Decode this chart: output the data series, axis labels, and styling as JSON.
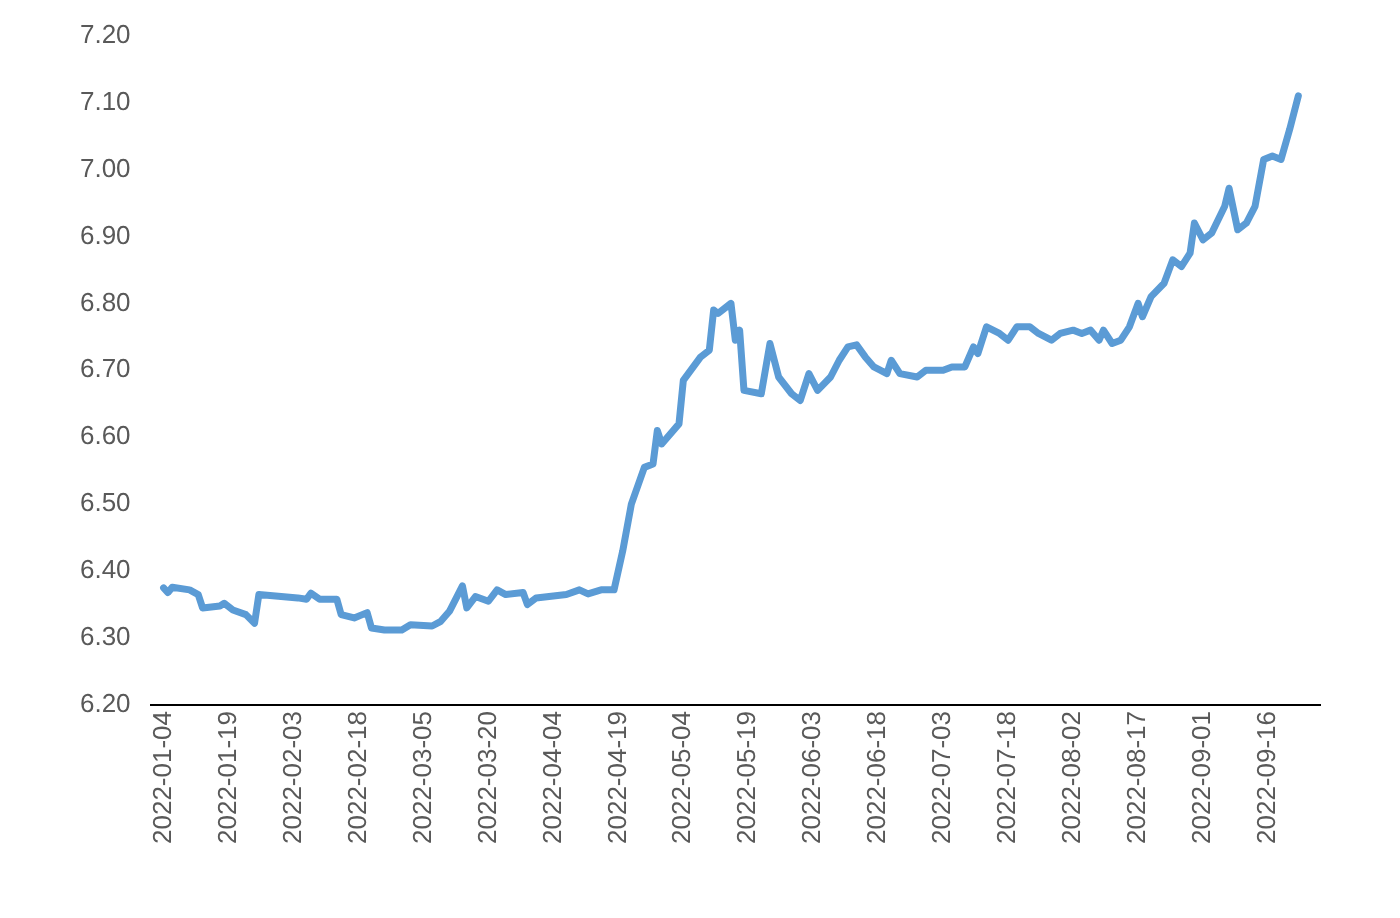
{
  "chart_data": {
    "type": "line",
    "x": [
      "2022-01-04",
      "2022-01-05",
      "2022-01-06",
      "2022-01-10",
      "2022-01-12",
      "2022-01-13",
      "2022-01-17",
      "2022-01-18",
      "2022-01-20",
      "2022-01-23",
      "2022-01-25",
      "2022-01-26",
      "2022-02-04",
      "2022-02-06",
      "2022-02-07",
      "2022-02-09",
      "2022-02-13",
      "2022-02-14",
      "2022-02-17",
      "2022-02-20",
      "2022-02-21",
      "2022-02-24",
      "2022-02-28",
      "2022-03-02",
      "2022-03-07",
      "2022-03-09",
      "2022-03-11",
      "2022-03-14",
      "2022-03-15",
      "2022-03-17",
      "2022-03-20",
      "2022-03-22",
      "2022-03-24",
      "2022-03-28",
      "2022-03-29",
      "2022-03-31",
      "2022-04-07",
      "2022-04-10",
      "2022-04-12",
      "2022-04-15",
      "2022-04-18",
      "2022-04-20",
      "2022-04-22",
      "2022-04-25",
      "2022-04-27",
      "2022-04-28",
      "2022-04-29",
      "2022-05-03",
      "2022-05-04",
      "2022-05-08",
      "2022-05-10",
      "2022-05-11",
      "2022-05-12",
      "2022-05-15",
      "2022-05-16",
      "2022-05-17",
      "2022-05-18",
      "2022-05-22",
      "2022-05-24",
      "2022-05-26",
      "2022-05-29",
      "2022-05-31",
      "2022-06-02",
      "2022-06-04",
      "2022-06-07",
      "2022-06-09",
      "2022-06-11",
      "2022-06-13",
      "2022-06-15",
      "2022-06-17",
      "2022-06-20",
      "2022-06-21",
      "2022-06-23",
      "2022-06-27",
      "2022-06-29",
      "2022-07-03",
      "2022-07-05",
      "2022-07-08",
      "2022-07-10",
      "2022-07-11",
      "2022-07-13",
      "2022-07-16",
      "2022-07-18",
      "2022-07-20",
      "2022-07-23",
      "2022-07-25",
      "2022-07-28",
      "2022-07-30",
      "2022-08-02",
      "2022-08-04",
      "2022-08-06",
      "2022-08-08",
      "2022-08-09",
      "2022-08-11",
      "2022-08-13",
      "2022-08-15",
      "2022-08-17",
      "2022-08-18",
      "2022-08-20",
      "2022-08-23",
      "2022-08-25",
      "2022-08-27",
      "2022-08-29",
      "2022-08-30",
      "2022-09-01",
      "2022-09-03",
      "2022-09-06",
      "2022-09-07",
      "2022-09-09",
      "2022-09-11",
      "2022-09-13",
      "2022-09-15",
      "2022-09-17",
      "2022-09-19",
      "2022-09-21",
      "2022-09-23"
    ],
    "series": [
      {
        "color": "#5b9bd5",
        "values": [
          6.375,
          6.368,
          6.376,
          6.372,
          6.365,
          6.345,
          6.348,
          6.352,
          6.342,
          6.335,
          6.322,
          6.365,
          6.36,
          6.358,
          6.367,
          6.358,
          6.358,
          6.335,
          6.33,
          6.338,
          6.315,
          6.312,
          6.312,
          6.32,
          6.318,
          6.325,
          6.34,
          6.378,
          6.345,
          6.362,
          6.355,
          6.372,
          6.365,
          6.368,
          6.35,
          6.36,
          6.365,
          6.372,
          6.366,
          6.372,
          6.372,
          6.43,
          6.5,
          6.555,
          6.56,
          6.61,
          6.59,
          6.62,
          6.685,
          6.72,
          6.73,
          6.79,
          6.785,
          6.8,
          6.745,
          6.76,
          6.67,
          6.665,
          6.74,
          6.69,
          6.665,
          6.655,
          6.695,
          6.67,
          6.69,
          6.715,
          6.735,
          6.738,
          6.72,
          6.705,
          6.695,
          6.715,
          6.695,
          6.69,
          6.7,
          6.7,
          6.705,
          6.705,
          6.735,
          6.725,
          6.765,
          6.755,
          6.745,
          6.765,
          6.765,
          6.755,
          6.745,
          6.755,
          6.76,
          6.755,
          6.76,
          6.745,
          6.76,
          6.74,
          6.745,
          6.765,
          6.8,
          6.78,
          6.81,
          6.83,
          6.865,
          6.855,
          6.875,
          6.92,
          6.895,
          6.905,
          6.945,
          6.972,
          6.91,
          6.92,
          6.945,
          7.015,
          7.02,
          7.015,
          7.06,
          7.11
        ]
      }
    ],
    "xlim": [
      "2022-01-01",
      "2022-09-28"
    ],
    "xticks": [
      "2022-01-04",
      "2022-01-19",
      "2022-02-03",
      "2022-02-18",
      "2022-03-05",
      "2022-03-20",
      "2022-04-04",
      "2022-04-19",
      "2022-05-04",
      "2022-05-19",
      "2022-06-03",
      "2022-06-18",
      "2022-07-03",
      "2022-07-18",
      "2022-08-02",
      "2022-08-17",
      "2022-09-01",
      "2022-09-16"
    ],
    "ylim": [
      6.2,
      7.2
    ],
    "yticks": [
      {
        "value": 6.2,
        "label": "6.20"
      },
      {
        "value": 6.3,
        "label": "6.30"
      },
      {
        "value": 6.4,
        "label": "6.40"
      },
      {
        "value": 6.5,
        "label": "6.50"
      },
      {
        "value": 6.6,
        "label": "6.60"
      },
      {
        "value": 6.7,
        "label": "6.70"
      },
      {
        "value": 6.8,
        "label": "6.80"
      },
      {
        "value": 6.9,
        "label": "6.90"
      },
      {
        "value": 7.0,
        "label": "7.00"
      },
      {
        "value": 7.1,
        "label": "7.10"
      },
      {
        "value": 7.2,
        "label": "7.20"
      }
    ],
    "grid": false,
    "legend": false,
    "marker": "none",
    "line_style": "solid"
  }
}
